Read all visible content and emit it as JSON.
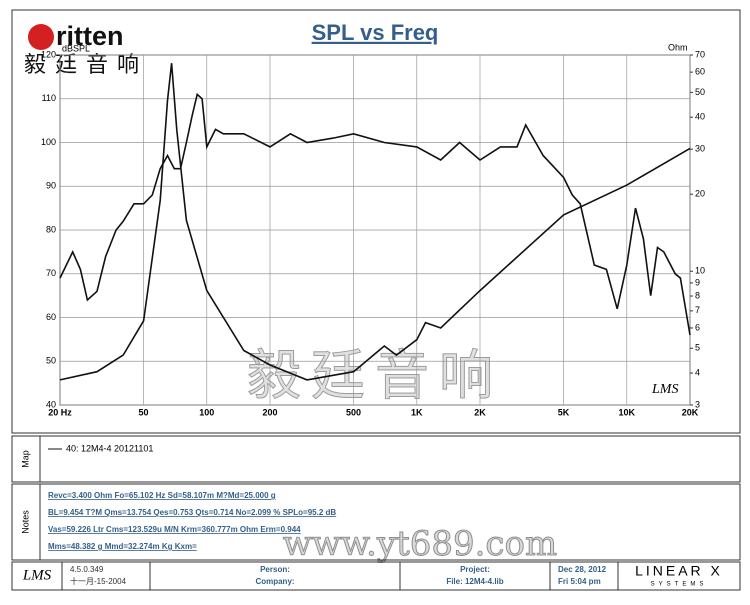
{
  "header": {
    "logo": "ritten",
    "logo_cn": "毅廷音响"
  },
  "chart_data": {
    "type": "line",
    "title": "SPL vs Freq",
    "ylabel": "dBSPL",
    "y2label": "Ohm",
    "xlim": [
      20,
      20000
    ],
    "xscale": "log",
    "xticks": [
      {
        "value": 20,
        "label": "20 Hz"
      },
      50,
      100,
      200,
      500,
      {
        "value": 1000,
        "label": "1K"
      },
      {
        "value": 2000,
        "label": "2K"
      },
      {
        "value": 5000,
        "label": "5K"
      },
      {
        "value": 10000,
        "label": "10K"
      },
      {
        "value": 20000,
        "label": "20K"
      }
    ],
    "ylim": [
      40,
      120
    ],
    "yticks": [
      40,
      50,
      60,
      70,
      80,
      90,
      100,
      110,
      120
    ],
    "y2lim": [
      3,
      70
    ],
    "y2scale": "log",
    "y2ticks": [
      3,
      4,
      5,
      6,
      7,
      8,
      9,
      10,
      20,
      30,
      40,
      50,
      60,
      70
    ],
    "grid": true,
    "series": [
      {
        "color": "#111111",
        "x": [
          20,
          23,
          25,
          27,
          30,
          33,
          37,
          40,
          45,
          50,
          55,
          60,
          65,
          70,
          75,
          80,
          85,
          90,
          95,
          100,
          110,
          120,
          150,
          200,
          250,
          300,
          400,
          500,
          700,
          1000,
          1300,
          1600,
          2000,
          2500,
          3000,
          3300,
          4000,
          5000,
          5500,
          6000,
          7000,
          8000,
          9000,
          10000,
          11000,
          12000,
          13000,
          14000,
          15000,
          17000,
          18000,
          20000
        ],
        "values": [
          69,
          75,
          71,
          64,
          66,
          74,
          80,
          82,
          86,
          86,
          88,
          94,
          97,
          94,
          94,
          100,
          106,
          111,
          110,
          99,
          103,
          102,
          102,
          99,
          102,
          100,
          101,
          102,
          100,
          99,
          96,
          100,
          96,
          99,
          99,
          104,
          97,
          92,
          88,
          86,
          72,
          71,
          62,
          72,
          85,
          78,
          65,
          76,
          75,
          70,
          69,
          56
        ]
      },
      {
        "color": "#111111",
        "axis": "y2",
        "x": [
          20,
          30,
          40,
          50,
          60,
          65,
          68,
          72,
          80,
          100,
          150,
          200,
          300,
          500,
          700,
          800,
          1000,
          1100,
          1300,
          2000,
          5000,
          10000,
          20000
        ],
        "values": [
          3.76,
          4.05,
          4.7,
          6.4,
          18.9,
          46.5,
          65,
          35.6,
          15.8,
          8.4,
          4.9,
          4.3,
          3.76,
          4.05,
          5.1,
          4.7,
          5.4,
          6.3,
          6.0,
          8.4,
          16.6,
          21.7,
          30.2
        ]
      }
    ],
    "stamp": "LMS",
    "watermark": "毅廷音响"
  },
  "map": {
    "label": "Map",
    "legend": "40: 12M4-4   20121101"
  },
  "notes": {
    "label": "Notes",
    "lines": [
      "Revc=3.400 Ohm  Fo=65.102 Hz  Sd=58.107m M?Md=25.000 g",
      "BL=9.454 T?M  Qms=13.754  Qes=0.753  Qts=0.714  No=2.099 %  SPLo=95.2 dB",
      "Vas=59.226 Ltr  Cms=123.529u M/N  Krm=360.777m Ohm  Erm=0.944",
      "Mms=48.382 g  Mmd=32.274m Kg  Kxm="
    ]
  },
  "watermark": "www.yt689.com",
  "footer": {
    "logo": "LMS",
    "version": "4.5.0.349",
    "build": "十一月-15-2004",
    "person": "Person:",
    "company": "Company:",
    "project": "Project:",
    "file": "File: 12M4-4.lib",
    "date": "Dec 28, 2012",
    "time": "Fri 5:04 pm",
    "brand": "LINEAR X",
    "brand_sub": "SYSTEMS"
  }
}
